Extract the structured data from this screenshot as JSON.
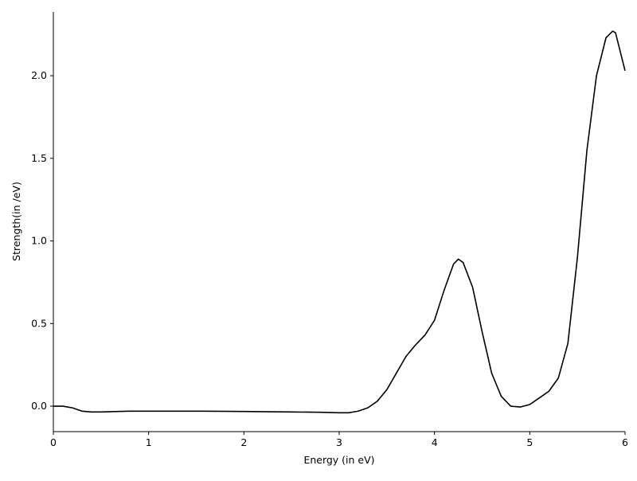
{
  "chart_data": {
    "type": "line",
    "xlabel": "Energy (in eV)",
    "ylabel": "Strength(in /eV)",
    "x": [
      0,
      0.1,
      0.2,
      0.3,
      0.4,
      0.5,
      0.6,
      0.8,
      1.0,
      1.5,
      2.0,
      2.5,
      2.8,
      3.0,
      3.1,
      3.2,
      3.3,
      3.4,
      3.5,
      3.6,
      3.7,
      3.8,
      3.9,
      4.0,
      4.1,
      4.2,
      4.25,
      4.3,
      4.4,
      4.5,
      4.6,
      4.7,
      4.8,
      4.9,
      5.0,
      5.1,
      5.2,
      5.3,
      5.4,
      5.5,
      5.6,
      5.7,
      5.8,
      5.87,
      5.9,
      6.0
    ],
    "series": [
      {
        "name": "Strength",
        "color": "#000000",
        "values": [
          0.0,
          0.0,
          -0.01,
          -0.03,
          -0.035,
          -0.035,
          -0.033,
          -0.03,
          -0.03,
          -0.03,
          -0.032,
          -0.035,
          -0.037,
          -0.04,
          -0.04,
          -0.03,
          -0.01,
          0.03,
          0.1,
          0.2,
          0.3,
          0.37,
          0.43,
          0.52,
          0.7,
          0.86,
          0.89,
          0.87,
          0.72,
          0.45,
          0.2,
          0.06,
          0.0,
          -0.005,
          0.01,
          0.05,
          0.09,
          0.17,
          0.38,
          0.9,
          1.55,
          2.0,
          2.23,
          2.27,
          2.26,
          2.03
        ]
      }
    ],
    "xlim": [
      0,
      6
    ],
    "xticks": [
      0,
      1,
      2,
      3,
      4,
      5,
      6
    ],
    "ylim": [
      -0.154,
      2.386
    ],
    "yticks": [
      {
        "value": 0,
        "label": "0.0"
      },
      {
        "value": 0.5,
        "label": "0.5"
      },
      {
        "value": 1,
        "label": "1.0"
      },
      {
        "value": 1.5,
        "label": "1.5"
      },
      {
        "value": 2,
        "label": "2.0"
      }
    ],
    "grid": false
  }
}
